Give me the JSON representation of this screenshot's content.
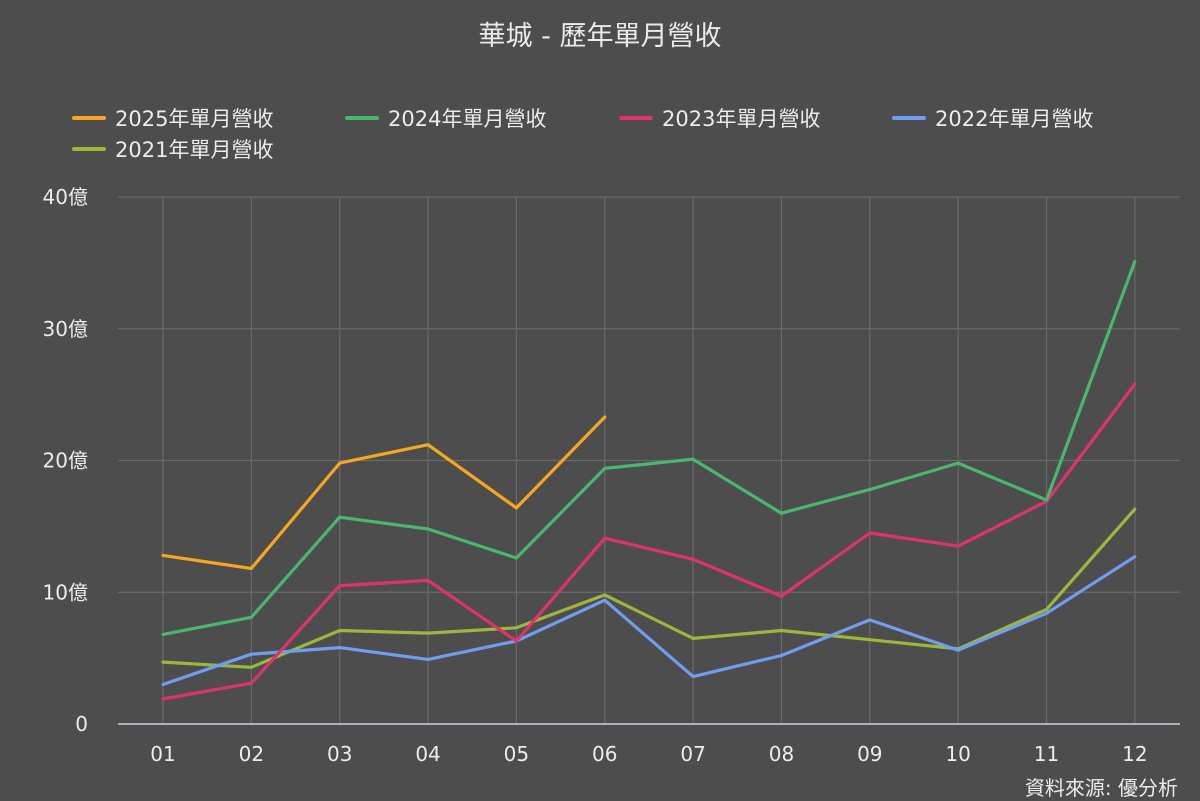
{
  "chart_data": {
    "type": "line",
    "title": "華城 - 歷年單月營收",
    "xlabel": "",
    "ylabel": "",
    "categories": [
      "01",
      "02",
      "03",
      "04",
      "05",
      "06",
      "07",
      "08",
      "09",
      "10",
      "11",
      "12"
    ],
    "y_ticks": [
      "0",
      "10億",
      "20億",
      "30億",
      "40億"
    ],
    "ylim": [
      0,
      40
    ],
    "y_unit": "億",
    "grid": true,
    "legend_position": "top",
    "series": [
      {
        "name": "2025年單月營收",
        "color": "#f5a623",
        "values": [
          12.8,
          11.8,
          19.8,
          21.2,
          16.4,
          23.3,
          null,
          null,
          null,
          null,
          null,
          null
        ]
      },
      {
        "name": "2024年單月營收",
        "color": "#49b86e",
        "values": [
          6.8,
          8.1,
          15.7,
          14.8,
          12.6,
          19.4,
          20.1,
          16.0,
          17.8,
          19.8,
          17.0,
          35.1
        ]
      },
      {
        "name": "2023年單月營收",
        "color": "#e0336b",
        "values": [
          1.9,
          3.1,
          10.5,
          10.9,
          6.3,
          14.1,
          12.5,
          9.7,
          14.5,
          13.5,
          16.9,
          25.8
        ]
      },
      {
        "name": "2022年單月營收",
        "color": "#6f9ef0",
        "values": [
          3.0,
          5.3,
          5.8,
          4.9,
          6.3,
          9.4,
          3.6,
          5.2,
          7.9,
          5.6,
          8.4,
          12.7
        ]
      },
      {
        "name": "2021年單月營收",
        "color": "#9bb83a",
        "values": [
          4.7,
          4.3,
          7.1,
          6.9,
          7.3,
          9.8,
          6.5,
          7.1,
          6.4,
          5.7,
          8.7,
          16.3
        ]
      }
    ]
  },
  "source_text": "資料來源: 優分析",
  "colors": {
    "background": "#4d4d4d",
    "grid": "#6a6a6a",
    "axis": "#c9d4e6",
    "text": "#ececec"
  }
}
